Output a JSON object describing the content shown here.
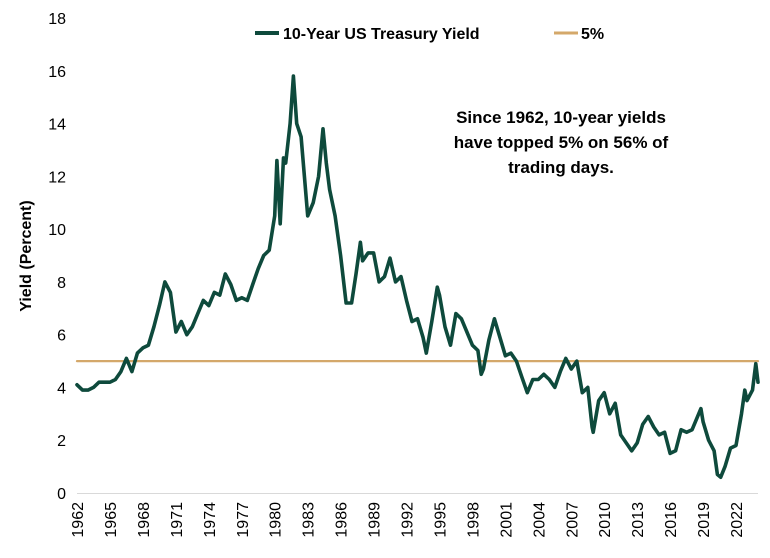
{
  "chart_data": {
    "type": "line",
    "title": "",
    "xlabel": "",
    "ylabel": "Yield (Percent)",
    "xlim": [
      1962,
      2024
    ],
    "ylim": [
      0,
      18
    ],
    "yticks": [
      "0",
      "2",
      "4",
      "6",
      "8",
      "10",
      "12",
      "14",
      "16",
      "18"
    ],
    "xticks": [
      "1962",
      "1965",
      "1968",
      "1971",
      "1974",
      "1977",
      "1980",
      "1983",
      "1986",
      "1989",
      "1992",
      "1995",
      "1998",
      "2001",
      "2004",
      "2007",
      "2010",
      "2013",
      "2016",
      "2019",
      "2022"
    ],
    "grid": false,
    "legend_position": "top",
    "series": [
      {
        "name": "10-Year US Treasury Yield",
        "color": "#0e4a3c",
        "x": [
          1962.0,
          1962.5,
          1963.0,
          1963.5,
          1964.0,
          1964.5,
          1965.0,
          1965.5,
          1966.0,
          1966.5,
          1967.0,
          1967.5,
          1968.0,
          1968.5,
          1969.0,
          1969.5,
          1970.0,
          1970.5,
          1971.0,
          1971.5,
          1972.0,
          1972.5,
          1973.0,
          1973.5,
          1974.0,
          1974.5,
          1975.0,
          1975.5,
          1976.0,
          1976.5,
          1977.0,
          1977.5,
          1978.0,
          1978.5,
          1979.0,
          1979.5,
          1980.0,
          1980.2,
          1980.5,
          1980.8,
          1981.0,
          1981.4,
          1981.7,
          1982.0,
          1982.4,
          1982.7,
          1983.0,
          1983.5,
          1984.0,
          1984.4,
          1984.7,
          1985.0,
          1985.5,
          1986.0,
          1986.5,
          1987.0,
          1987.4,
          1987.8,
          1988.0,
          1988.5,
          1989.0,
          1989.5,
          1990.0,
          1990.5,
          1991.0,
          1991.5,
          1992.0,
          1992.5,
          1993.0,
          1993.5,
          1993.8,
          1994.3,
          1994.8,
          1995.0,
          1995.5,
          1996.0,
          1996.5,
          1997.0,
          1997.5,
          1998.0,
          1998.5,
          1998.8,
          1999.0,
          1999.5,
          2000.0,
          2000.5,
          2001.0,
          2001.5,
          2002.0,
          2002.5,
          2003.0,
          2003.5,
          2004.0,
          2004.5,
          2005.0,
          2005.5,
          2006.0,
          2006.5,
          2007.0,
          2007.5,
          2008.0,
          2008.5,
          2008.9,
          2009.0,
          2009.5,
          2010.0,
          2010.5,
          2011.0,
          2011.5,
          2012.0,
          2012.5,
          2013.0,
          2013.5,
          2014.0,
          2014.5,
          2015.0,
          2015.5,
          2016.0,
          2016.5,
          2017.0,
          2017.5,
          2018.0,
          2018.8,
          2019.0,
          2019.5,
          2020.0,
          2020.3,
          2020.6,
          2021.0,
          2021.5,
          2022.0,
          2022.5,
          2022.8,
          2023.0,
          2023.5,
          2023.8,
          2024.0
        ],
        "values": [
          4.1,
          3.9,
          3.9,
          4.0,
          4.2,
          4.2,
          4.2,
          4.3,
          4.6,
          5.1,
          4.6,
          5.3,
          5.5,
          5.6,
          6.3,
          7.1,
          8.0,
          7.6,
          6.1,
          6.5,
          6.0,
          6.3,
          6.8,
          7.3,
          7.1,
          7.6,
          7.5,
          8.3,
          7.9,
          7.3,
          7.4,
          7.3,
          7.9,
          8.5,
          9.0,
          9.2,
          10.5,
          12.6,
          10.2,
          12.7,
          12.5,
          14.0,
          15.8,
          14.0,
          13.5,
          12.0,
          10.5,
          11.0,
          12.0,
          13.8,
          12.5,
          11.5,
          10.5,
          9.0,
          7.2,
          7.2,
          8.3,
          9.5,
          8.8,
          9.1,
          9.1,
          8.0,
          8.2,
          8.9,
          8.0,
          8.2,
          7.3,
          6.5,
          6.6,
          5.9,
          5.3,
          6.5,
          7.8,
          7.5,
          6.3,
          5.6,
          6.8,
          6.6,
          6.1,
          5.6,
          5.4,
          4.5,
          4.7,
          5.8,
          6.6,
          5.9,
          5.2,
          5.3,
          5.0,
          4.4,
          3.8,
          4.3,
          4.3,
          4.5,
          4.3,
          4.0,
          4.6,
          5.1,
          4.7,
          5.0,
          3.8,
          4.0,
          2.5,
          2.3,
          3.5,
          3.8,
          3.0,
          3.4,
          2.2,
          1.9,
          1.6,
          1.9,
          2.6,
          2.9,
          2.5,
          2.2,
          2.3,
          1.5,
          1.6,
          2.4,
          2.3,
          2.4,
          3.2,
          2.7,
          2.0,
          1.6,
          0.7,
          0.6,
          1.0,
          1.7,
          1.8,
          3.0,
          3.9,
          3.5,
          3.9,
          4.9,
          4.2
        ]
      },
      {
        "name": "5%",
        "color": "#d4a86a",
        "x": [
          1962,
          2024
        ],
        "values": [
          5,
          5
        ]
      }
    ],
    "annotation": [
      "Since 1962, 10-year yields",
      "have topped 5% on 56% of",
      "trading days."
    ]
  }
}
